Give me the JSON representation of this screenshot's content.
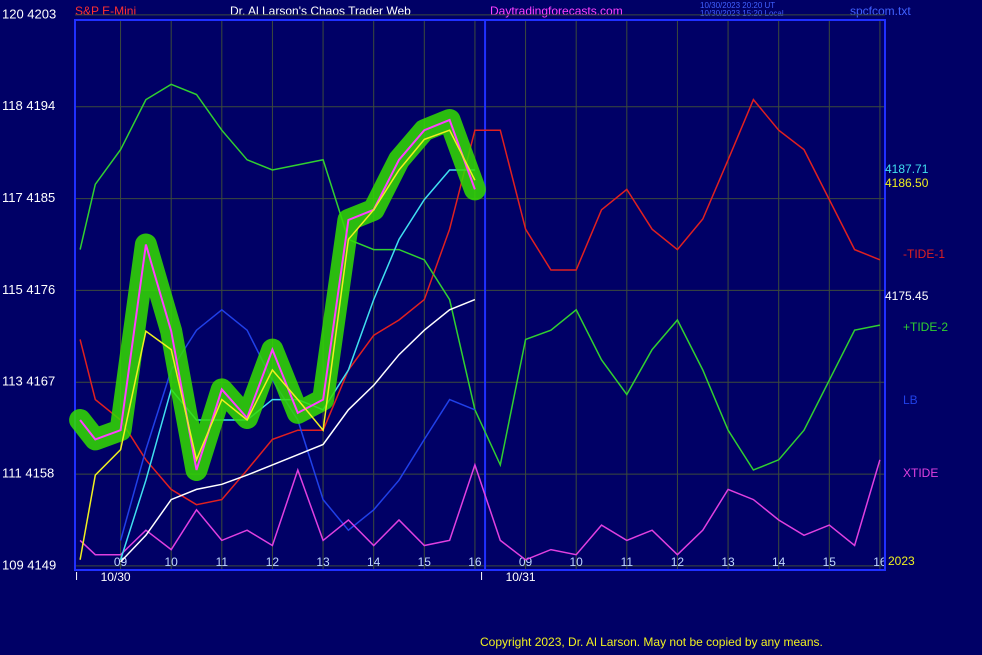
{
  "chart_data": {
    "type": "line",
    "title": "Dr. Al Larson's Chaos Trader Web",
    "symbol": "S&P E-Mini",
    "site": "Daytradingforecasts.com",
    "timestamps": [
      "10/30/2023 20:20 UT",
      "10/30/2023 15:20 Local"
    ],
    "file": "spcfcom.txt",
    "copyright": "Copyright 2023, Dr. Al Larson. May not be copied by any means.",
    "dates": [
      {
        "value": 0,
        "label": "10/30"
      },
      {
        "value": 8,
        "label": "10/31"
      }
    ],
    "year": "2023",
    "day_break": 7.2,
    "x": [
      -0.8,
      -0.5,
      0,
      0.5,
      1,
      1.5,
      2,
      2.5,
      3,
      3.5,
      4,
      4.5,
      5,
      5.5,
      6,
      6.5,
      7,
      7.5,
      8,
      8.5,
      9,
      9.5,
      10,
      10.5,
      11,
      11.5,
      12,
      12.5,
      13,
      13.5,
      14,
      14.5,
      15
    ],
    "xlim": [
      -0.9,
      15.1
    ],
    "xticks": [
      {
        "value": 0,
        "label": "09"
      },
      {
        "value": 1,
        "label": "10"
      },
      {
        "value": 2,
        "label": "11"
      },
      {
        "value": 3,
        "label": "12"
      },
      {
        "value": 4,
        "label": "13"
      },
      {
        "value": 5,
        "label": "14"
      },
      {
        "value": 6,
        "label": "15"
      },
      {
        "value": 7,
        "label": "16"
      },
      {
        "value": 8,
        "label": "09"
      },
      {
        "value": 9,
        "label": "10"
      },
      {
        "value": 10,
        "label": "11"
      },
      {
        "value": 11,
        "label": "12"
      },
      {
        "value": 12,
        "label": "13"
      },
      {
        "value": 13,
        "label": "14"
      },
      {
        "value": 14,
        "label": "15"
      },
      {
        "value": 15,
        "label": "16"
      }
    ],
    "ylim": [
      4148.6,
      4202.5
    ],
    "yticks": [
      {
        "value": 4149,
        "label": "109 4149"
      },
      {
        "value": 4158,
        "label": "111 4158"
      },
      {
        "value": 4167,
        "label": "113 4167"
      },
      {
        "value": 4176,
        "label": "115 4176"
      },
      {
        "value": 4185,
        "label": "117 4185"
      },
      {
        "value": 4194,
        "label": "118 4194"
      },
      {
        "value": 4203,
        "label": "120 4203"
      }
    ],
    "grid": true,
    "series": [
      {
        "name": "-TIDE-1",
        "color": "#e02020",
        "values": [
          4171.2,
          4165.3,
          4163.3,
          4159.4,
          4156.5,
          4155,
          4155.5,
          4158.4,
          4161.4,
          4162.3,
          4162.3,
          4168.2,
          4171.6,
          4173.1,
          4175.1,
          4182,
          4191.7,
          4191.7,
          4182,
          4178,
          4178,
          4183.9,
          4185.9,
          4182,
          4180,
          4183,
          4188.8,
          4194.7,
          4191.7,
          4189.8,
          4184.9,
          4180,
          4179
        ]
      },
      {
        "name": "+TIDE-2",
        "color": "#30d030",
        "values": [
          4180,
          4186.4,
          4189.8,
          4194.7,
          4196.2,
          4195.2,
          4191.7,
          4188.8,
          4187.8,
          4188.3,
          4188.8,
          4181,
          4180,
          4180,
          4179,
          4175.1,
          4164.3,
          4158.9,
          4171.2,
          4172.1,
          4174.1,
          4169.2,
          4165.8,
          4170.2,
          4173.1,
          4168.2,
          4162.3,
          4158.4,
          4159.4,
          4162.3,
          4167.2,
          4172.1,
          4172.6
        ]
      },
      {
        "name": "LB",
        "color": "#2040e8",
        "values": [
          null,
          null,
          4151.5,
          4160.4,
          4168.2,
          4172.1,
          4174.1,
          4172.1,
          4167.2,
          4163.3,
          4155.5,
          4152.5,
          4154.5,
          4157.4,
          4161.4,
          4165.3,
          4164.3,
          null,
          null,
          null,
          null,
          null,
          null,
          null,
          null,
          null,
          null,
          null,
          null,
          null,
          null,
          null,
          null
        ]
      },
      {
        "name": "XTIDE",
        "color": "#e040e0",
        "values": [
          4151.5,
          4150.1,
          4150.1,
          4152.5,
          4150.6,
          4154.5,
          4151.5,
          4152.5,
          4151,
          4158.4,
          4151.5,
          4153.5,
          4151,
          4153.5,
          4151,
          4151.5,
          4158.9,
          4151.5,
          4149.6,
          4150.6,
          4150.1,
          4153,
          4151.5,
          4152.5,
          4150.1,
          4152.5,
          4156.5,
          4155.5,
          4153.5,
          4152,
          4153,
          4151,
          4159.4
        ]
      },
      {
        "color": "#ffffff",
        "values": [
          null,
          null,
          4149.4,
          4152,
          4155.5,
          4156.5,
          4157,
          4157.9,
          4158.9,
          4159.9,
          4160.9,
          4164.3,
          4166.7,
          4169.7,
          4172.1,
          4174.1,
          4175.1,
          null,
          null,
          null,
          null,
          null,
          null,
          null,
          null,
          null,
          null,
          null,
          null,
          null,
          null,
          null,
          null
        ]
      },
      {
        "color": "#40e0f0",
        "values": [
          null,
          null,
          4149.6,
          4157.4,
          4166.3,
          4163.3,
          4163.3,
          4163.3,
          4165.3,
          4165.3,
          4164.3,
          4168.2,
          4175.1,
          4181,
          4184.9,
          4187.8,
          4187.8,
          null,
          null,
          null,
          null,
          null,
          null,
          null,
          null,
          null,
          null,
          null,
          null,
          null,
          null,
          null,
          null
        ]
      },
      {
        "color": "#ff40ff",
        "glow": "#33dd00",
        "values": [
          4163.3,
          4161.4,
          4162.3,
          4180.5,
          4172,
          4158.4,
          4166.3,
          4163.5,
          4170.2,
          4164,
          4165.3,
          4182.9,
          4183.9,
          4188.8,
          4191.7,
          4192.7,
          4185.9,
          null,
          null,
          null,
          null,
          null,
          null,
          null,
          null,
          null,
          null,
          null,
          null,
          null,
          null,
          null,
          null
        ]
      },
      {
        "color": "#f0f020",
        "values": [
          4149.6,
          4157.9,
          4160.4,
          4172,
          4170.2,
          4159.4,
          4165.3,
          4163.3,
          4168.2,
          4165.3,
          4162.3,
          4181,
          4183.9,
          4187.8,
          4190.8,
          4191.7,
          4186.8,
          null,
          null,
          null,
          null,
          null,
          null,
          null,
          null,
          null,
          null,
          null,
          null,
          null,
          null,
          null,
          null
        ]
      }
    ],
    "last_values": [
      {
        "text": "4187.71",
        "color": "#40e0f0"
      },
      {
        "text": "4186.50",
        "color": "#f0f020"
      },
      {
        "text": "4175.45",
        "color": "#ffffff"
      }
    ]
  }
}
